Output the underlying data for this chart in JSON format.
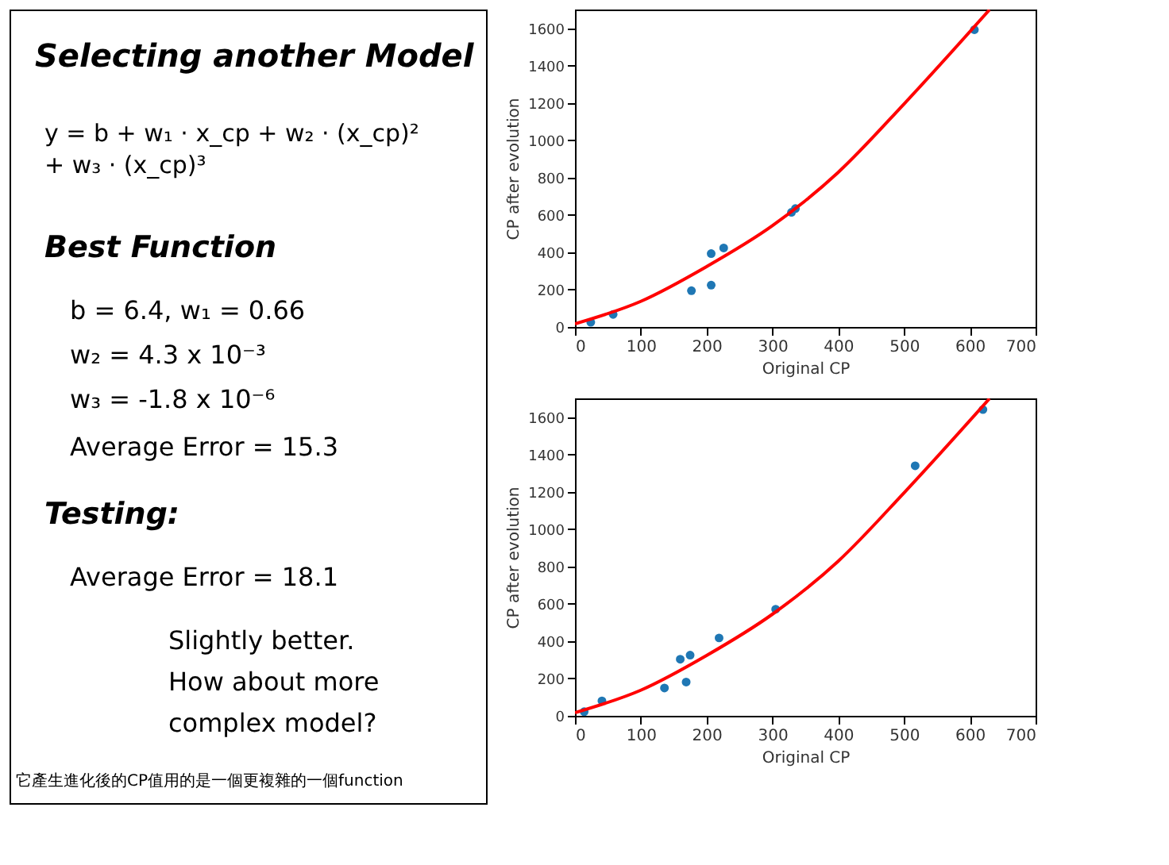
{
  "chart_data": [
    {
      "type": "other",
      "title": "Selecting another Model",
      "annotations": [
        "y = b + w₁ · x_cp + w₂ · (x_cp)²",
        "+ w₃ · (x_cp)³",
        "Best Function",
        "b = 6.4, w₁ = 0.66",
        "w₂ = 4.3 x 10⁻³",
        "w₃ = -1.8 x 10⁻⁶",
        "Average Error = 15.3",
        "Testing:",
        "Average Error = 18.1",
        "Slightly better.",
        "How about more",
        "complex model?",
        "它產生進化後的CP值用的是一個更複雜的一個function"
      ]
    },
    {
      "type": "scatter",
      "xlabel": "Original CP",
      "ylabel": "CP after evolution",
      "xlim": [
        0,
        700
      ],
      "ylim": [
        0,
        1700
      ],
      "xticks": [
        0,
        100,
        200,
        300,
        400,
        500,
        600,
        700
      ],
      "yticks": [
        0,
        200,
        400,
        600,
        800,
        1000,
        1200,
        1400,
        1600
      ],
      "marker": "circle",
      "series": [
        {
          "type": "scatter",
          "color": "#1f77b4",
          "x": [
            24,
            58,
            177,
            207,
            207,
            226,
            329,
            335,
            607
          ],
          "values": [
            25,
            67,
            194,
            393,
            224,
            423,
            614,
            634,
            1592
          ]
        },
        {
          "type": "line",
          "color": "#ff0000",
          "marker": "none",
          "x": [
            0,
            100,
            200,
            300,
            400,
            500,
            630
          ],
          "values": [
            17,
            137,
            323,
            542,
            828,
            1194,
            1699
          ]
        }
      ]
    },
    {
      "type": "scatter",
      "xlabel": "Original CP",
      "ylabel": "CP after evolution",
      "xlim": [
        0,
        700
      ],
      "ylim": [
        0,
        1700
      ],
      "xticks": [
        0,
        100,
        200,
        300,
        400,
        500,
        600,
        700
      ],
      "yticks": [
        0,
        200,
        400,
        600,
        800,
        1000,
        1200,
        1400,
        1600
      ],
      "marker": "circle",
      "series": [
        {
          "type": "scatter",
          "color": "#1f77b4",
          "x": [
            14,
            41,
            136,
            160,
            169,
            175,
            219,
            305,
            517,
            620
          ],
          "values": [
            22,
            80,
            149,
            303,
            181,
            325,
            417,
            571,
            1339,
            1640
          ]
        },
        {
          "type": "line",
          "color": "#ff0000",
          "marker": "none",
          "x": [
            0,
            100,
            200,
            300,
            400,
            500,
            630
          ],
          "values": [
            17,
            137,
            323,
            544,
            828,
            1194,
            1699
          ]
        }
      ]
    }
  ]
}
